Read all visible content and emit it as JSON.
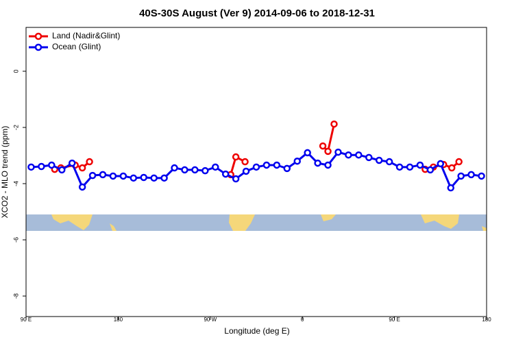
{
  "chart_data": {
    "type": "line",
    "title": "40S-30S August (Ver 9)   2014-09-06 to 2018-12-31",
    "x_label": "Longitude (deg E)",
    "y_label": "XCO2 - MLO trend (ppm)",
    "xlim": [
      90,
      540
    ],
    "ylim": [
      -8.73,
      1.56
    ],
    "xticks": [
      {
        "value": 90,
        "label": "90 E"
      },
      {
        "value": 180,
        "label": "180"
      },
      {
        "value": 270,
        "label": "90 W"
      },
      {
        "value": 360,
        "label": "0"
      },
      {
        "value": 450,
        "label": "90 E"
      },
      {
        "value": 540,
        "label": "180"
      }
    ],
    "yticks": [
      0,
      -2,
      -4,
      -6,
      -8
    ],
    "legend": "top-left",
    "series": [
      {
        "name": "Land (Nadir&Glint)",
        "color": "#ee0000",
        "x": [
          118,
          124,
          138,
          145,
          152,
          null,
          290,
          295,
          304,
          null,
          380,
          385,
          391,
          null,
          480,
          488,
          498,
          506,
          513
        ],
        "values": [
          -3.49,
          -3.44,
          -3.34,
          -3.44,
          -3.22,
          null,
          -3.68,
          -3.05,
          -3.22,
          null,
          -2.66,
          -2.85,
          -1.88,
          null,
          -3.49,
          -3.41,
          -3.32,
          -3.44,
          -3.22
        ]
      },
      {
        "name": "Ocean (Glint)",
        "color": "#0000ee",
        "x": [
          95,
          105,
          115,
          125,
          135,
          145,
          155,
          165,
          175,
          185,
          195,
          205,
          215,
          225,
          235,
          245,
          255,
          265,
          275,
          285,
          295,
          305,
          315,
          325,
          335,
          345,
          355,
          365,
          375,
          385,
          395,
          405,
          415,
          425,
          435,
          445,
          455,
          465,
          475,
          485,
          495,
          505,
          515,
          525,
          535
        ],
        "values": [
          -3.41,
          -3.39,
          -3.34,
          -3.51,
          -3.27,
          -4.12,
          -3.71,
          -3.68,
          -3.73,
          -3.73,
          -3.8,
          -3.78,
          -3.8,
          -3.8,
          -3.44,
          -3.51,
          -3.51,
          -3.54,
          -3.41,
          -3.66,
          -3.83,
          -3.56,
          -3.41,
          -3.34,
          -3.34,
          -3.46,
          -3.2,
          -2.9,
          -3.27,
          -3.34,
          -2.88,
          -2.98,
          -2.98,
          -3.07,
          -3.17,
          -3.22,
          -3.41,
          -3.41,
          -3.34,
          -3.51,
          -3.29,
          -4.15,
          -3.73,
          -3.68,
          -3.73
        ]
      }
    ]
  }
}
